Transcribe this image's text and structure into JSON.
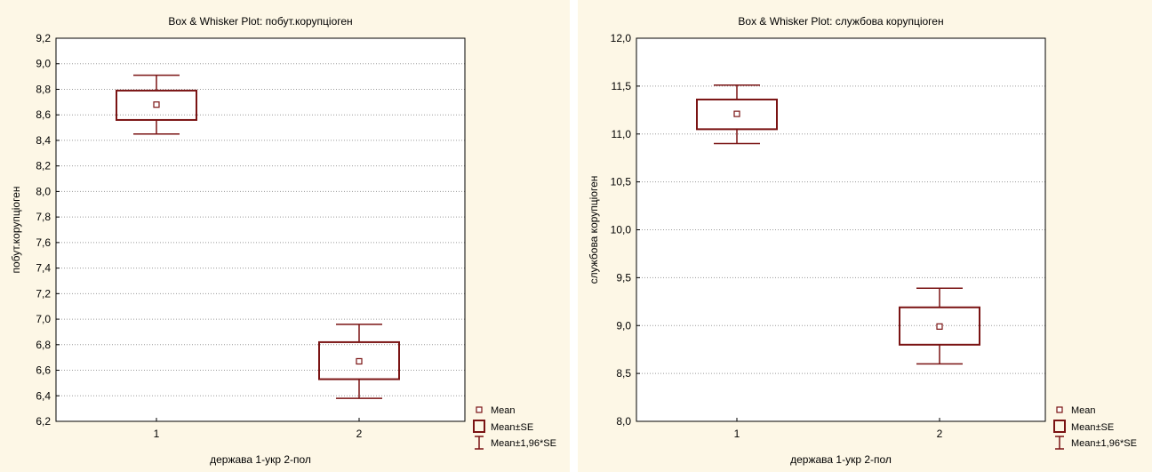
{
  "colors": {
    "panel_bg": "#fdf7e6",
    "plot_bg": "#ffffff",
    "series": "#7a1313",
    "grid": "#9a9a9a",
    "text": "#000000"
  },
  "legend": {
    "mean": "Mean",
    "se": "Mean±SE",
    "ci": "Mean±1,96*SE"
  },
  "chart_data": [
    {
      "type": "box",
      "title": "Box & Whisker Plot: побут.корупціоген",
      "xlabel": "держава 1-укр 2-пол",
      "ylabel": "побут.корупціоген",
      "categories": [
        "1",
        "2"
      ],
      "ylim": [
        6.2,
        9.2
      ],
      "yticks": [
        "6,2",
        "6,4",
        "6,6",
        "6,8",
        "7,0",
        "7,2",
        "7,4",
        "7,6",
        "7,8",
        "8,0",
        "8,2",
        "8,4",
        "8,6",
        "8,8",
        "9,0",
        "9,2"
      ],
      "grid": true,
      "legend_position": "bottom-right",
      "boxes": [
        {
          "category": "1",
          "mean": 8.68,
          "se_low": 8.56,
          "se_high": 8.79,
          "ci_low": 8.45,
          "ci_high": 8.91
        },
        {
          "category": "2",
          "mean": 6.67,
          "se_low": 6.53,
          "se_high": 6.82,
          "ci_low": 6.38,
          "ci_high": 6.96
        }
      ]
    },
    {
      "type": "box",
      "title": "Box & Whisker Plot: службова корупціоген",
      "xlabel": "держава 1-укр 2-пол",
      "ylabel": "службова корупціоген",
      "categories": [
        "1",
        "2"
      ],
      "ylim": [
        8.0,
        12.0
      ],
      "yticks": [
        "8,0",
        "8,5",
        "9,0",
        "9,5",
        "10,0",
        "10,5",
        "11,0",
        "11,5",
        "12,0"
      ],
      "grid": true,
      "legend_position": "bottom-right",
      "boxes": [
        {
          "category": "1",
          "mean": 11.21,
          "se_low": 11.05,
          "se_high": 11.36,
          "ci_low": 10.9,
          "ci_high": 11.51
        },
        {
          "category": "2",
          "mean": 8.99,
          "se_low": 8.8,
          "se_high": 9.19,
          "ci_low": 8.6,
          "ci_high": 9.39
        }
      ]
    }
  ]
}
